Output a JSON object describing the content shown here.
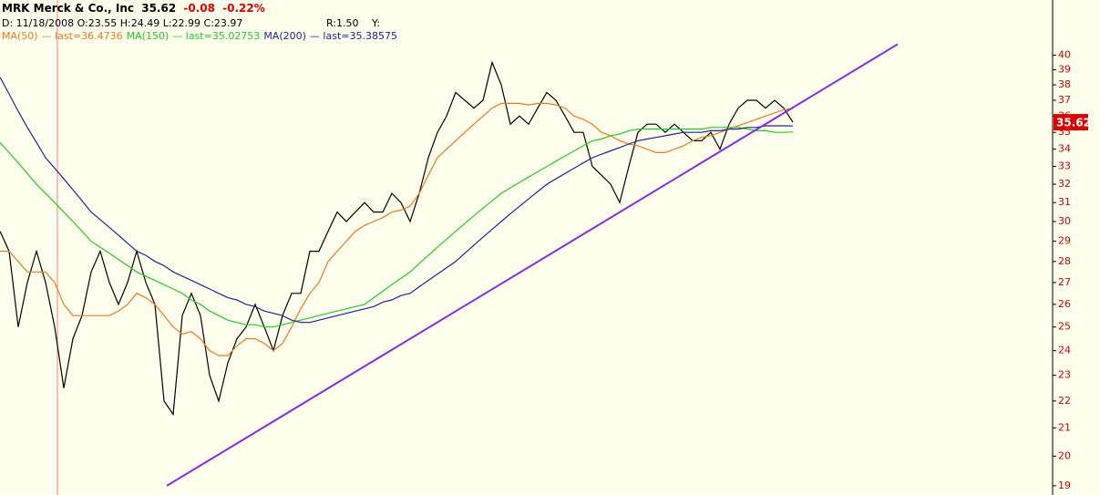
{
  "chart_data": {
    "type": "line",
    "title": "MRK Merck & Co., Inc",
    "change": "-0.08",
    "change_pct": "-0.22%",
    "info": "D: 11/18/2008 O:23.55 H:24.49 L:22.99 C:23.97",
    "ratio": "R:1.50",
    "y_field": "Y:",
    "log_scale": true,
    "xlim": [
      0,
      115.5
    ],
    "ylim": [
      18.7,
      44
    ],
    "yticks": [
      19,
      20,
      21,
      22,
      23,
      24,
      25,
      26,
      27,
      28,
      29,
      30,
      31,
      32,
      33,
      34,
      35,
      36,
      37,
      38,
      39,
      40
    ],
    "x": [
      0,
      1,
      2,
      3,
      4,
      5,
      6,
      7,
      8,
      9,
      10,
      11,
      12,
      13,
      14,
      15,
      16,
      17,
      18,
      19,
      20,
      21,
      22,
      23,
      24,
      25,
      26,
      27,
      28,
      29,
      30,
      31,
      32,
      33,
      34,
      35,
      36,
      37,
      38,
      39,
      40,
      41,
      42,
      43,
      44,
      45,
      46,
      47,
      48,
      49,
      50,
      51,
      52,
      53,
      54,
      55,
      56,
      57,
      58,
      59,
      60,
      61,
      62,
      63,
      64,
      65,
      66,
      67,
      68,
      69,
      70,
      71,
      72,
      73,
      74,
      75,
      76,
      77,
      78,
      79,
      80,
      81,
      82,
      83,
      84,
      85,
      86,
      87
    ],
    "series": [
      {
        "color": "#000000",
        "values": [
          29.5,
          28.5,
          25,
          27,
          28.5,
          27,
          25,
          22.5,
          24.5,
          25.5,
          27.5,
          28.5,
          27,
          26,
          27,
          28.5,
          27,
          26,
          22,
          21.5,
          25.5,
          26.5,
          25.5,
          23,
          22,
          23.5,
          24.5,
          25,
          26,
          25,
          24,
          25.5,
          26.5,
          26.5,
          28.5,
          28.5,
          29.5,
          30.5,
          30,
          30.5,
          31,
          30.5,
          30.5,
          31.5,
          31,
          30,
          31.5,
          33.5,
          35,
          36,
          37.5,
          37,
          36.5,
          37,
          39.5,
          38,
          35.5,
          36,
          35.5,
          36.5,
          37.5,
          37,
          36,
          35,
          35,
          33,
          32.5,
          32,
          31,
          33,
          35,
          35.5,
          35.5,
          35,
          35.5,
          35,
          34.5,
          34.5,
          35,
          34,
          35.5,
          36.5,
          37,
          37,
          36.5,
          37,
          36.5,
          35.62
        ]
      },
      {
        "name": "MA(50)",
        "last_label": "— last=36.4736",
        "color": "#f07820",
        "values": [
          28.5,
          28.5,
          28,
          27.5,
          27.5,
          27.5,
          27,
          26,
          25.5,
          25.5,
          25.5,
          25.5,
          25.5,
          25.7,
          26,
          26.5,
          26.3,
          26,
          25.5,
          25,
          24.7,
          24.8,
          24.5,
          24,
          23.8,
          23.8,
          24.2,
          24.5,
          24.5,
          24.3,
          24,
          24.3,
          25,
          25.8,
          26.5,
          27,
          28,
          28.5,
          29,
          29.5,
          29.8,
          30,
          30.2,
          30.5,
          30.6,
          30.8,
          31.5,
          32.5,
          33.5,
          34,
          34.5,
          35,
          35.5,
          36,
          36.5,
          36.8,
          36.8,
          36.8,
          36.7,
          36.8,
          36.8,
          36.7,
          36.5,
          36,
          35.8,
          35.5,
          35,
          34.8,
          34.5,
          34.3,
          34.2,
          34,
          33.8,
          33.8,
          34,
          34.2,
          34.5,
          34.7,
          34.8,
          35,
          35.2,
          35.4,
          35.6,
          35.8,
          36,
          36.2,
          36.4,
          36.47
        ]
      },
      {
        "name": "MA(150)",
        "last_label": "— last=35.02753",
        "color": "#22cc22",
        "values": [
          34.4,
          33.8,
          33.2,
          32.6,
          32,
          31.5,
          31,
          30.5,
          30,
          29.5,
          29,
          28.7,
          28.4,
          28.1,
          27.8,
          27.5,
          27.3,
          27.1,
          26.9,
          26.7,
          26.5,
          26.2,
          26,
          25.7,
          25.5,
          25.3,
          25.2,
          25.1,
          25.1,
          25,
          25,
          25.1,
          25.2,
          25.3,
          25.4,
          25.5,
          25.6,
          25.7,
          25.8,
          25.9,
          26,
          26.3,
          26.6,
          26.9,
          27.2,
          27.5,
          27.9,
          28.3,
          28.7,
          29.1,
          29.5,
          29.9,
          30.3,
          30.7,
          31.1,
          31.5,
          31.8,
          32.1,
          32.4,
          32.7,
          33,
          33.3,
          33.6,
          33.9,
          34.2,
          34.5,
          34.6,
          34.8,
          34.9,
          35.1,
          35.2,
          35.2,
          35.2,
          35.2,
          35.2,
          35.2,
          35.2,
          35.2,
          35.3,
          35.3,
          35.3,
          35.3,
          35.2,
          35.1,
          35.1,
          35,
          35,
          35.03
        ]
      },
      {
        "name": "MA(200)",
        "last_label": "— last=35.38575",
        "color": "#222299",
        "values": [
          38.5,
          37.4,
          36.3,
          35.3,
          34.4,
          33.5,
          32.9,
          32.3,
          31.7,
          31.1,
          30.5,
          30.1,
          29.7,
          29.3,
          28.9,
          28.5,
          28.3,
          28,
          27.8,
          27.5,
          27.3,
          27.1,
          26.9,
          26.7,
          26.5,
          26.3,
          26.2,
          26,
          25.9,
          25.7,
          25.6,
          25.5,
          25.3,
          25.2,
          25.2,
          25.3,
          25.4,
          25.5,
          25.6,
          25.7,
          25.8,
          25.9,
          26.1,
          26.2,
          26.4,
          26.5,
          26.8,
          27.1,
          27.4,
          27.7,
          28,
          28.4,
          28.8,
          29.2,
          29.6,
          30,
          30.4,
          30.8,
          31.2,
          31.6,
          32,
          32.3,
          32.6,
          32.9,
          33.2,
          33.5,
          33.7,
          33.9,
          34.1,
          34.3,
          34.5,
          34.6,
          34.7,
          34.8,
          34.9,
          35,
          35,
          35,
          35.1,
          35.1,
          35.2,
          35.2,
          35.3,
          35.3,
          35.4,
          35.4,
          35.4,
          35.39
        ]
      }
    ],
    "trendline": {
      "color": "#8a2be2",
      "x": [
        18.3,
        98.5
      ],
      "values": [
        19,
        40.76
      ]
    },
    "vline": {
      "color": "#f08080",
      "x": 6.3
    },
    "axis_color": "#000000",
    "price_tag_color": "#dd0000"
  }
}
